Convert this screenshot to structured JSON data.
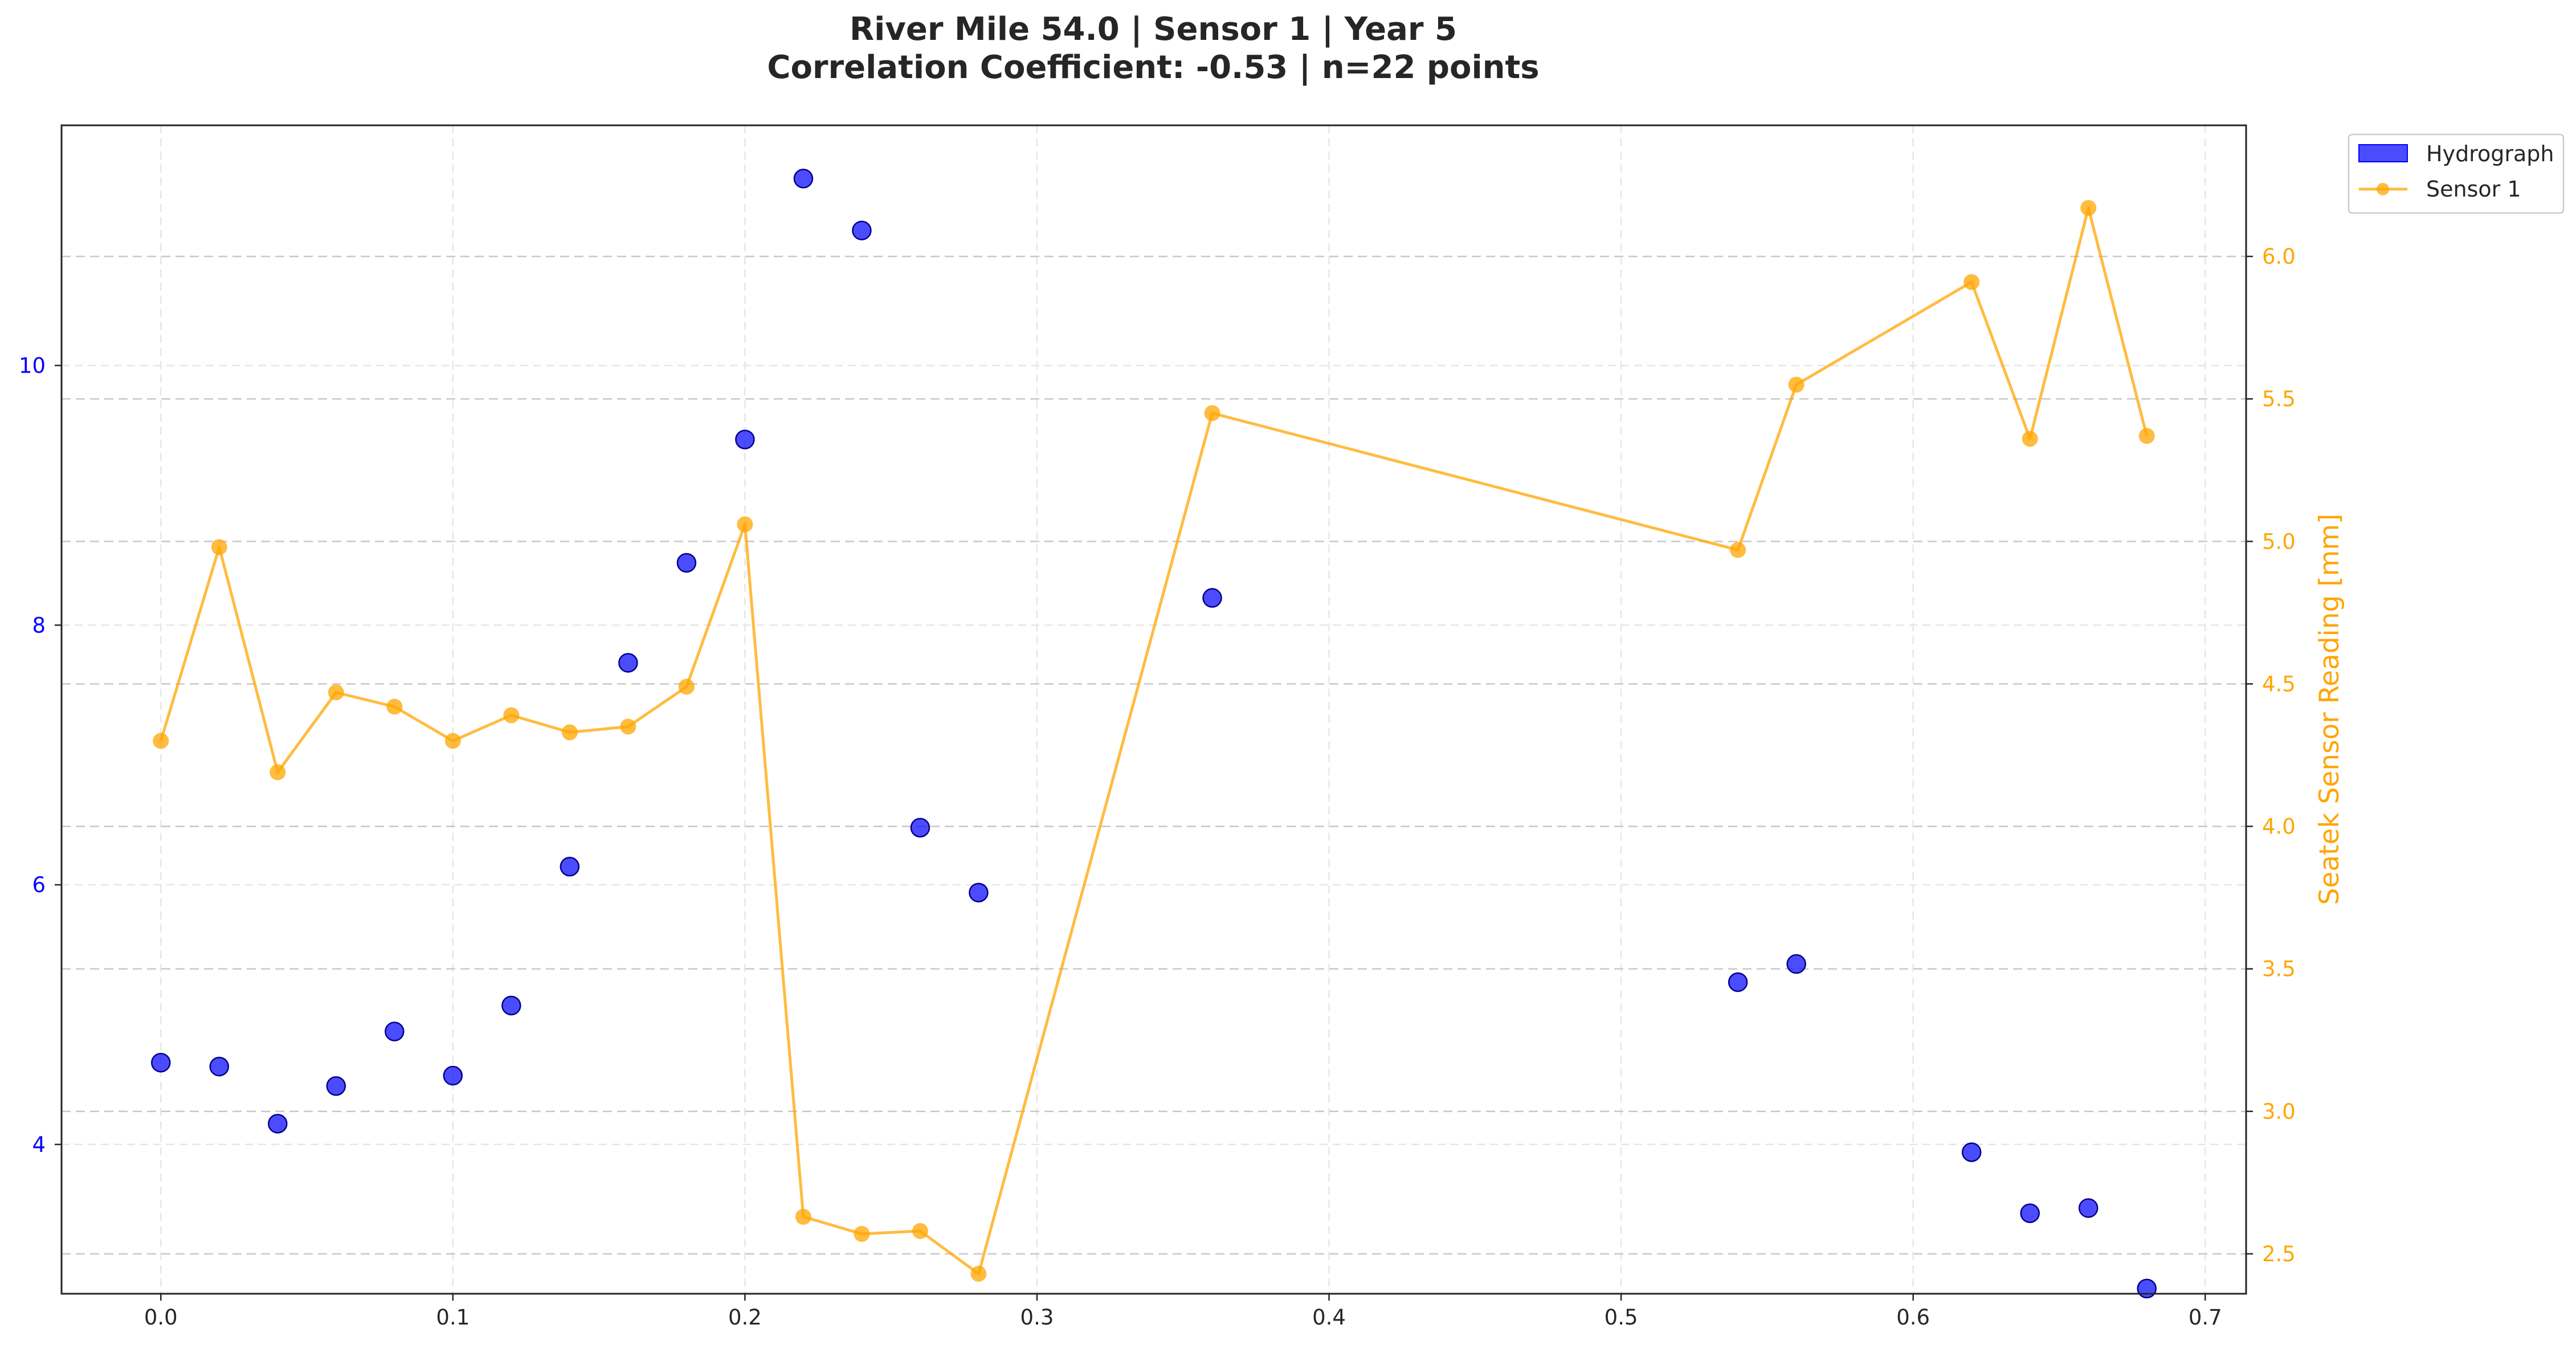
{
  "chart_data": {
    "type": "scatter",
    "title": "River Mile 54.0 | Sensor 1 | Year 5",
    "subtitle": "Correlation Coefficient: -0.53 | n=22 points",
    "xlabel": "",
    "ylabel_left": "",
    "ylabel_right": "Seatek Sensor Reading [mm]",
    "xlim": [
      -0.034,
      0.714
    ],
    "ylim_left": [
      2.85,
      11.85
    ],
    "ylim_right": [
      2.36,
      6.46
    ],
    "x_ticks": [
      0.0,
      0.1,
      0.2,
      0.3,
      0.4,
      0.5,
      0.6,
      0.7
    ],
    "x_tick_labels": [
      "0.0",
      "0.1",
      "0.2",
      "0.3",
      "0.4",
      "0.5",
      "0.6",
      "0.7"
    ],
    "y_left_ticks": [
      4,
      6,
      8,
      10
    ],
    "y_left_tick_labels": [
      "4",
      "6",
      "8",
      "10"
    ],
    "y_right_ticks": [
      2.5,
      3.0,
      3.5,
      4.0,
      4.5,
      5.0,
      5.5,
      6.0
    ],
    "y_right_tick_labels": [
      "2.5",
      "3.0",
      "3.5",
      "4.0",
      "4.5",
      "5.0",
      "5.5",
      "6.0"
    ],
    "grid": true,
    "legend_position": "outside-top-right",
    "series": [
      {
        "name": "Hydrograph",
        "type": "scatter",
        "axis": "left",
        "color": "#0000ff",
        "x": [
          0.0,
          0.02,
          0.04,
          0.06,
          0.08,
          0.1,
          0.12,
          0.14,
          0.16,
          0.18,
          0.2,
          0.22,
          0.24,
          0.26,
          0.28,
          0.36,
          0.54,
          0.56,
          0.62,
          0.64,
          0.66,
          0.68
        ],
        "y": [
          4.63,
          4.6,
          4.16,
          4.45,
          4.87,
          4.53,
          5.07,
          6.14,
          7.71,
          8.48,
          9.43,
          11.44,
          11.04,
          6.44,
          5.94,
          8.21,
          5.25,
          5.39,
          3.94,
          3.47,
          3.51,
          2.89
        ]
      },
      {
        "name": "Sensor 1",
        "type": "line",
        "axis": "right",
        "color": "#ffa500",
        "x": [
          0.0,
          0.02,
          0.04,
          0.06,
          0.08,
          0.1,
          0.12,
          0.14,
          0.16,
          0.18,
          0.2,
          0.22,
          0.24,
          0.26,
          0.28,
          0.36,
          0.54,
          0.56,
          0.62,
          0.64,
          0.66,
          0.68
        ],
        "y": [
          4.3,
          4.98,
          4.19,
          4.47,
          4.42,
          4.3,
          4.39,
          4.33,
          4.35,
          4.49,
          5.06,
          2.63,
          2.57,
          2.58,
          2.43,
          5.45,
          4.97,
          5.55,
          5.91,
          5.36,
          6.17,
          5.37
        ]
      }
    ]
  }
}
